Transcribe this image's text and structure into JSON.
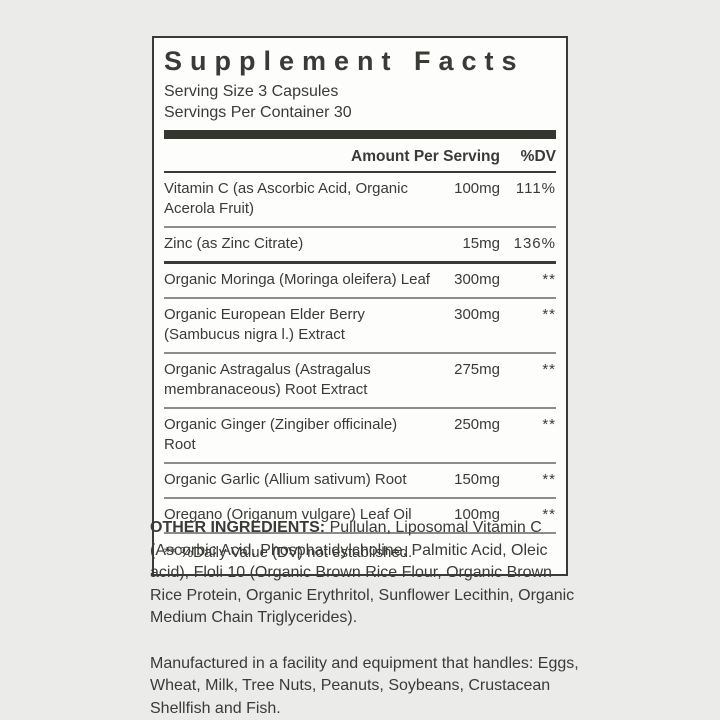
{
  "label": {
    "title": "Supplement Facts",
    "serving_size": "Serving Size 3 Capsules",
    "servings_per_container": "Servings Per Container 30",
    "columns": {
      "amount": "Amount Per Serving",
      "dv": "%DV"
    },
    "rows": [
      {
        "name": "Vitamin C (as Ascorbic Acid, Organic Acerola Fruit)",
        "amount": "100mg",
        "dv": "111%"
      },
      {
        "name": "Zinc (as Zinc Citrate)",
        "amount": "15mg",
        "dv": "136%"
      },
      {
        "name": "Organic Moringa (Moringa oleifera) Leaf",
        "amount": "300mg",
        "dv": "**"
      },
      {
        "name": "Organic European Elder Berry (Sambucus nigra l.) Extract",
        "amount": "300mg",
        "dv": "**"
      },
      {
        "name": "Organic Astragalus (Astragalus membranaceous) Root Extract",
        "amount": "275mg",
        "dv": "**"
      },
      {
        "name": "Organic Ginger (Zingiber officinale) Root",
        "amount": "250mg",
        "dv": "**"
      },
      {
        "name": "Organic Garlic (Allium sativum) Root",
        "amount": "150mg",
        "dv": "**"
      },
      {
        "name": "Oregano (Origanum vulgare) Leaf Oil",
        "amount": "100mg",
        "dv": "**"
      }
    ],
    "footnote": "** %Daily Value (DV) not established."
  },
  "other_ingredients": {
    "label": "OTHER INGREDIENTS:",
    "text": " Pullulan, Liposomal Vitamin C (Ascorbic Acid, Phosphatidylcholine, Palmitic Acid, Oleic acid), Floli 10 (Organic Brown Rice Flour, Organic Brown Rice Protein, Organic Erythritol, Sunflower Lecithin, Organic Medium Chain Triglycerides)."
  },
  "allergen_notice": "Manufactured in a facility and equipment that handles: Eggs, Wheat, Milk, Tree Nuts, Peanuts, Soybeans, Crustacean Shellfish and Fish.",
  "colors": {
    "page_background": "#ebebea",
    "label_background": "#fdfdfc",
    "text": "#3a3a37",
    "divider": "#8c8c88"
  }
}
